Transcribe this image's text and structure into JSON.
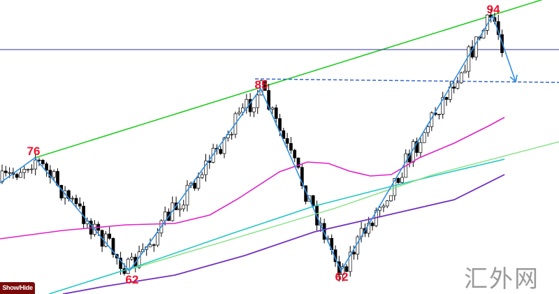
{
  "chart_data": {
    "type": "candlestick",
    "title": "",
    "zigzag_labels": [
      "76",
      "62",
      "85",
      "62",
      "94"
    ],
    "candle_colors": {
      "up": "#ffffff",
      "down": "#000000",
      "outline": "#000000"
    },
    "lines": [
      {
        "role": "channel-line",
        "color": "#22cc22"
      },
      {
        "role": "horizontal-level",
        "color": "#3333aa"
      },
      {
        "role": "dashed-level",
        "color": "#3366cc"
      },
      {
        "role": "moving-average",
        "color": "#e020c8"
      },
      {
        "role": "moving-average",
        "color": "#20c8c0"
      },
      {
        "role": "moving-average",
        "color": "#80e080"
      },
      {
        "role": "moving-average",
        "color": "#7030c0"
      },
      {
        "role": "zigzag",
        "color": "#2f8fe0"
      }
    ],
    "grid": false
  },
  "controls": {
    "show_hide_label": "Show/Hide"
  },
  "watermark": "汇外网"
}
